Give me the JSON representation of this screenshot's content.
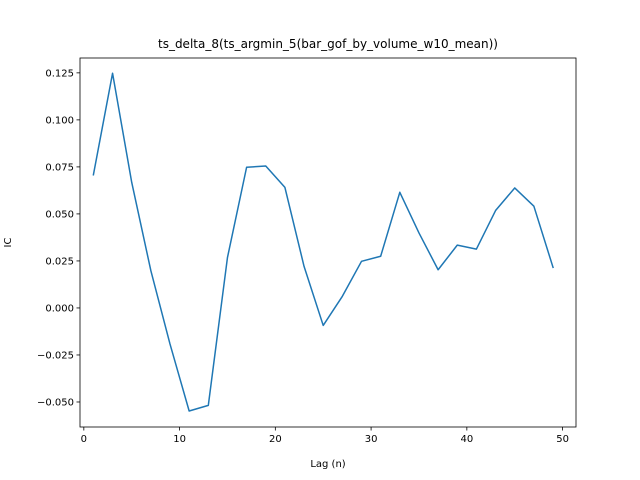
{
  "chart_data": {
    "type": "line",
    "title": "ts_delta_8(ts_argmin_5(bar_gof_by_volume_w10_mean))",
    "xlabel": "Lag (n)",
    "ylabel": "IC",
    "xlim": [
      -0.4,
      51.4
    ],
    "ylim": [
      -0.0633,
      0.1329
    ],
    "xticks": [
      0,
      10,
      20,
      30,
      40,
      50
    ],
    "xtick_labels": [
      "0",
      "10",
      "20",
      "30",
      "40",
      "50"
    ],
    "yticks": [
      -0.05,
      -0.025,
      0.0,
      0.025,
      0.05,
      0.075,
      0.1,
      0.125
    ],
    "ytick_labels": [
      "−0.050",
      "−0.025",
      "0.000",
      "0.025",
      "0.050",
      "0.075",
      "0.100",
      "0.125"
    ],
    "grid": false,
    "series": [
      {
        "color": "#1f77b4",
        "x": [
          1,
          3,
          5,
          7,
          9,
          11,
          13,
          15,
          17,
          19,
          21,
          23,
          25,
          27,
          29,
          31,
          33,
          35,
          37,
          39,
          41,
          43,
          45,
          47,
          49
        ],
        "y": [
          0.0708,
          0.1248,
          0.0668,
          0.0198,
          -0.0192,
          -0.0548,
          -0.0518,
          0.0268,
          0.0748,
          0.0755,
          0.0641,
          0.0221,
          -0.0093,
          0.0062,
          0.0248,
          0.0275,
          0.0615,
          0.0399,
          0.0203,
          0.0334,
          0.0313,
          0.0518,
          0.0638,
          0.0541,
          0.0216
        ]
      }
    ]
  }
}
